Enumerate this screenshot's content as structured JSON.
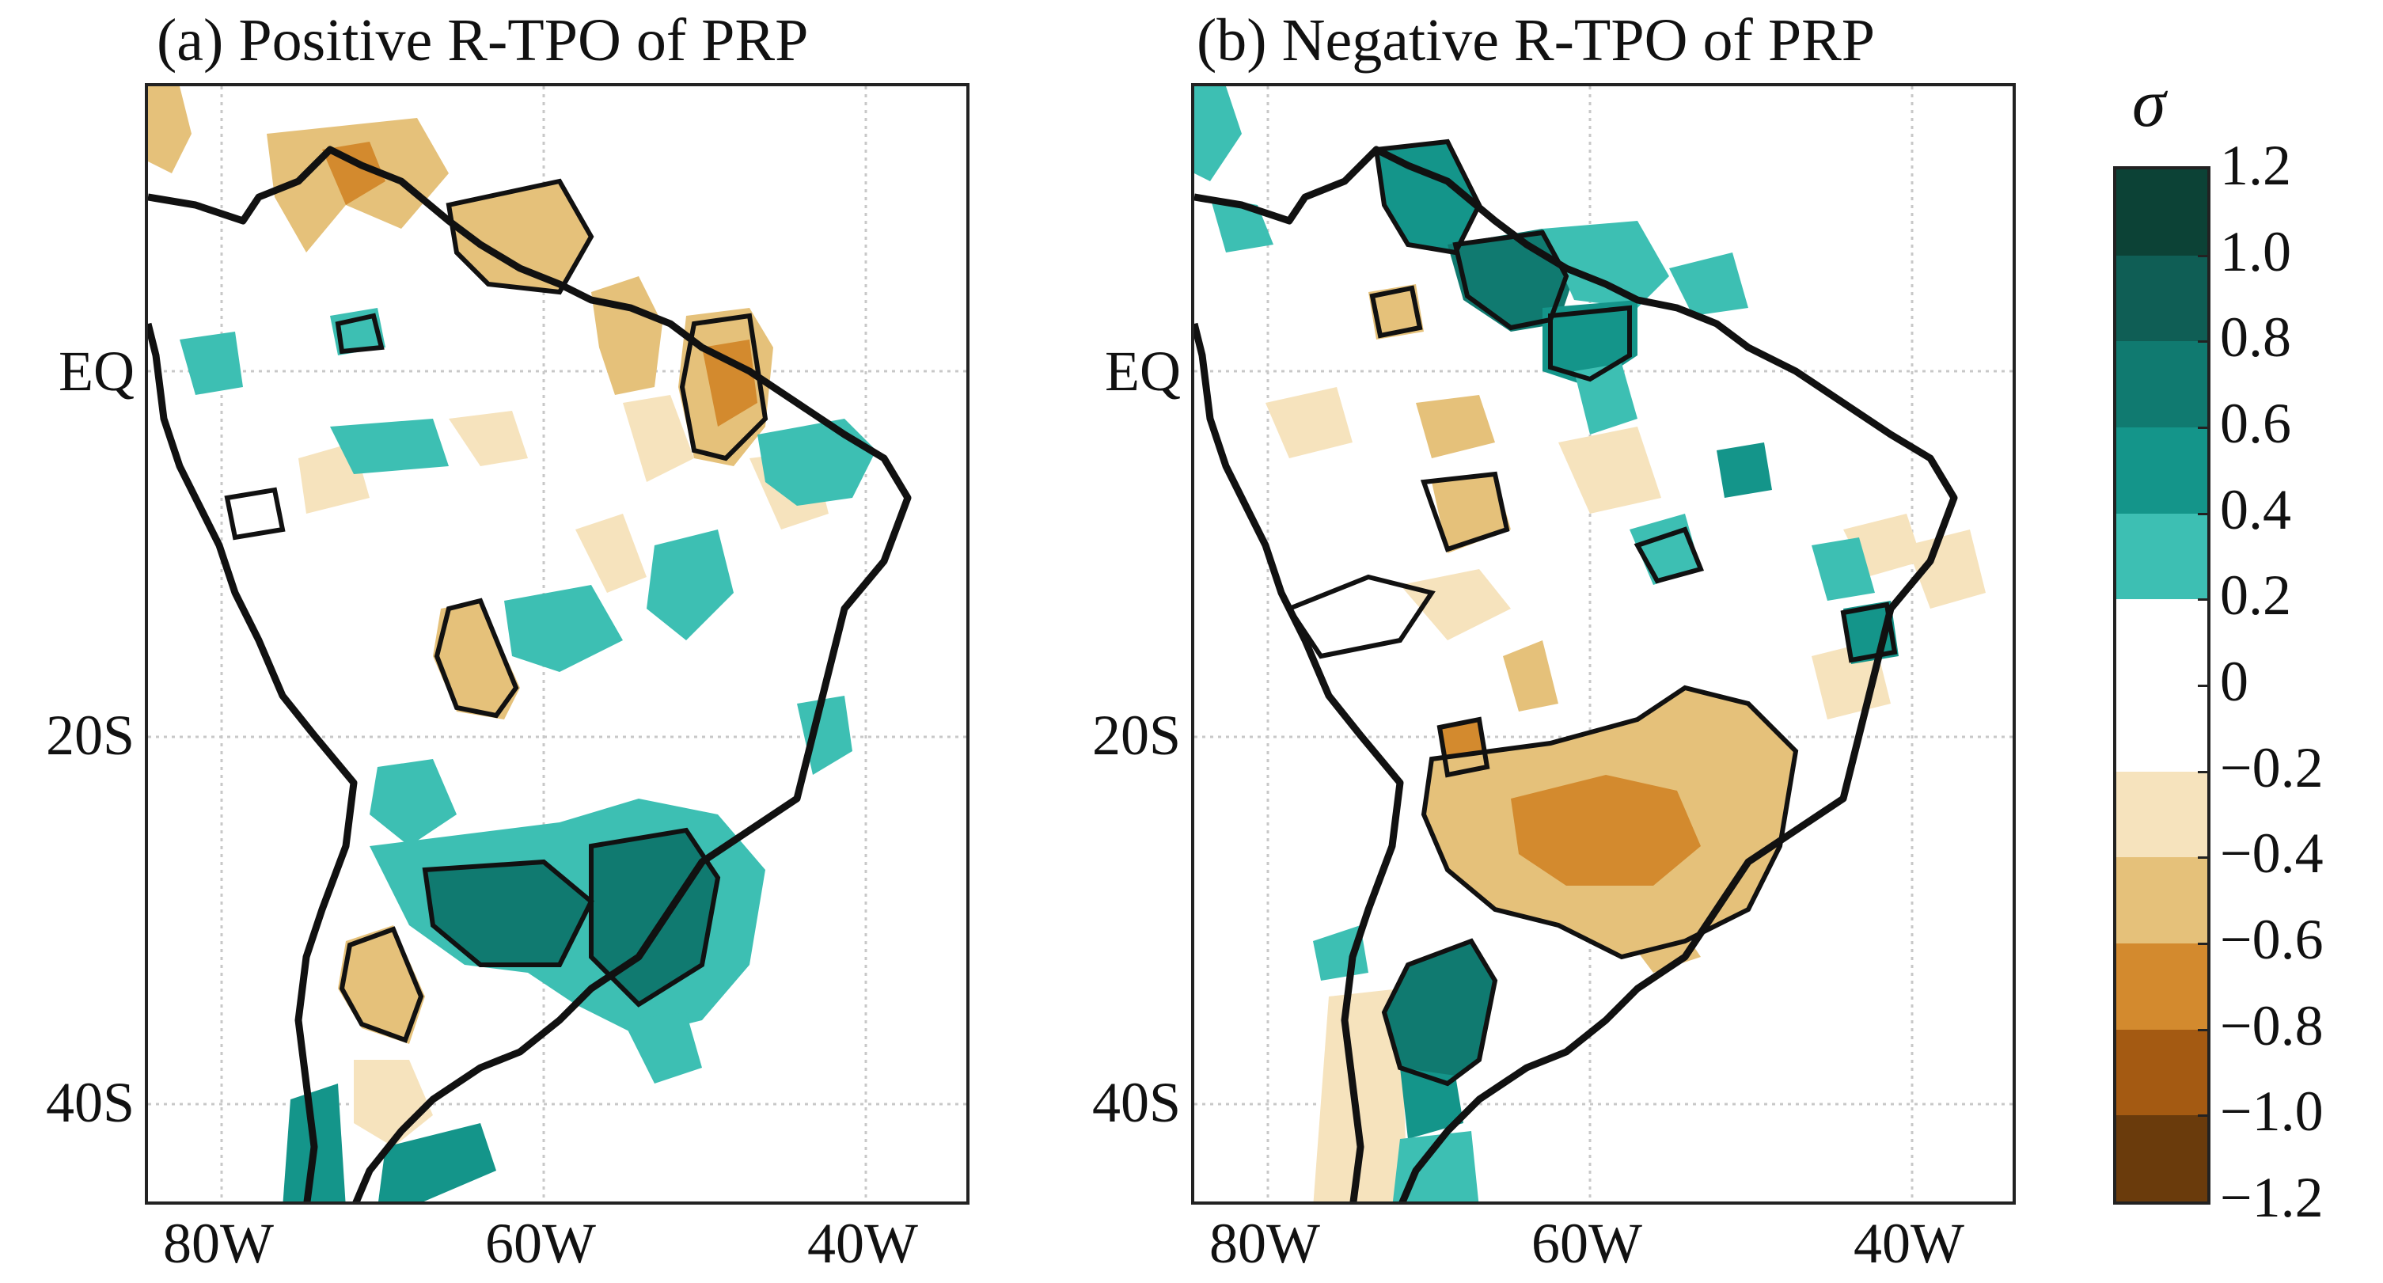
{
  "panels": [
    {
      "id": "a",
      "title": "(a) Positive R-TPO of PRP"
    },
    {
      "id": "b",
      "title": "(b) Negative R-TPO of PRP"
    }
  ],
  "axes": {
    "x_ticks": [
      "80W",
      "60W",
      "40W"
    ],
    "y_ticks": [
      "EQ",
      "20S",
      "40S"
    ]
  },
  "colorbar": {
    "title": "σ",
    "labels": [
      "1.2",
      "1.0",
      "0.8",
      "0.6",
      "0.4",
      "0.2",
      "0",
      "−0.2",
      "−0.4",
      "−0.6",
      "−0.8",
      "−1.0",
      "−1.2"
    ],
    "colors": [
      "#0c4236",
      "#0f5e55",
      "#107a70",
      "#14958a",
      "#3dbfb3",
      "#ffffff",
      "#ffffff",
      "#f6e3bd",
      "#e5c17a",
      "#d38a2e",
      "#a45a12",
      "#6a3b0c"
    ]
  },
  "map_colors": {
    "pos_light": "#3dbfb3",
    "pos_mid": "#14958a",
    "pos_dark": "#0f5e55",
    "neg_light": "#f6e3bd",
    "neg_mid": "#e5c17a",
    "neg_dark": "#d38a2e",
    "coast": "#111111",
    "grid": "#c8c8c8"
  }
}
